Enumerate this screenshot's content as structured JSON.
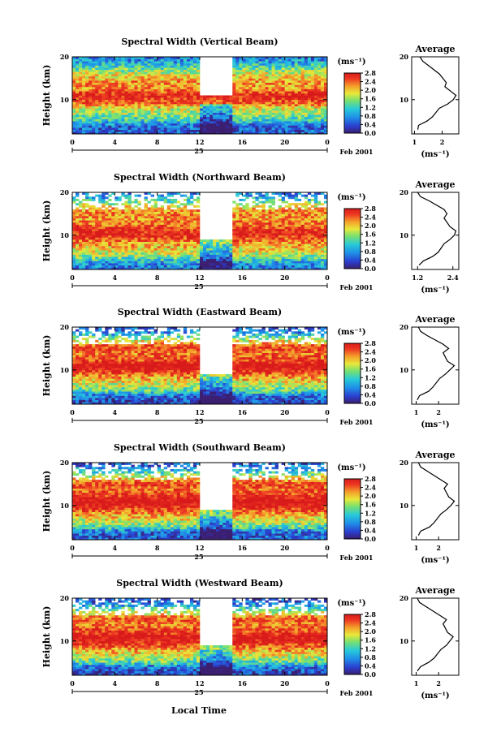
{
  "figure": {
    "xlabel": "Local Time",
    "date_label": "Feb 2001",
    "day_label": "25",
    "colorbar_unit": "(ms⁻¹)",
    "avg_title": "Average",
    "avg_unit": "(ms⁻¹)"
  },
  "chart_data": [
    {
      "type": "heatmap",
      "title": "Spectral Width (Vertical Beam)",
      "xlabel": "Local Time",
      "ylabel": "Height (km)",
      "x_ticks": [
        "0",
        "4",
        "8",
        "12",
        "16",
        "20",
        "0"
      ],
      "xlim": [
        0,
        24
      ],
      "y_ticks": [
        "20",
        "10"
      ],
      "ylim": [
        2,
        20
      ],
      "colorbar": {
        "unit": "(ms⁻¹)",
        "ticks": [
          "2.8",
          "2.4",
          "2.0",
          "1.6",
          "1.2",
          "0.8",
          "0.4",
          "0.0"
        ],
        "range": [
          0,
          2.8
        ],
        "colors": [
          "#3b1e70",
          "#2a3fd0",
          "#1f8fe8",
          "#27c9d9",
          "#78e070",
          "#e8e83a",
          "#f4a02a",
          "#ee3b22",
          "#d81a1a"
        ]
      },
      "average_profile": {
        "title": "Average",
        "xlabel": "(ms⁻¹)",
        "x_ticks": [
          "1",
          "2"
        ],
        "xlim": [
          0.9,
          2.6
        ],
        "y_ticks": [
          "20",
          "10"
        ],
        "height_km": [
          3,
          4,
          5,
          6,
          8,
          9,
          10,
          11,
          12,
          13,
          14,
          16,
          18,
          19,
          20
        ],
        "width_ms": [
          1.12,
          1.15,
          1.45,
          1.65,
          1.9,
          2.2,
          2.4,
          2.5,
          2.3,
          2.1,
          2.15,
          1.9,
          1.5,
          1.3,
          1.2
        ]
      },
      "date": "Feb 2001",
      "day": "25"
    },
    {
      "type": "heatmap",
      "title": "Spectral Width (Northward Beam)",
      "xlabel": "Local Time",
      "ylabel": "Height (km)",
      "x_ticks": [
        "0",
        "4",
        "8",
        "12",
        "16",
        "20",
        "0"
      ],
      "xlim": [
        0,
        24
      ],
      "y_ticks": [
        "20",
        "10"
      ],
      "ylim": [
        2,
        20
      ],
      "colorbar": {
        "unit": "(ms⁻¹)",
        "ticks": [
          "2.8",
          "2.4",
          "2.0",
          "1.6",
          "1.2",
          "0.8",
          "0.4",
          "0.0"
        ],
        "range": [
          0,
          2.8
        ],
        "colors": [
          "#3b1e70",
          "#2a3fd0",
          "#1f8fe8",
          "#27c9d9",
          "#78e070",
          "#e8e83a",
          "#f4a02a",
          "#ee3b22",
          "#d81a1a"
        ]
      },
      "average_profile": {
        "title": "Average",
        "xlabel": "(ms⁻¹)",
        "x_ticks": [
          "1.2",
          "2.4"
        ],
        "xlim": [
          1.0,
          2.6
        ],
        "y_ticks": [
          "20",
          "10"
        ],
        "height_km": [
          3,
          4,
          5,
          6,
          8,
          9,
          10,
          11,
          12,
          14,
          15,
          16,
          18,
          19,
          20
        ],
        "width_ms": [
          1.25,
          1.4,
          1.7,
          1.9,
          2.1,
          2.3,
          2.45,
          2.5,
          2.3,
          2.1,
          2.2,
          2.1,
          1.6,
          1.3,
          1.2
        ]
      },
      "date": "Feb 2001",
      "day": "25"
    },
    {
      "type": "heatmap",
      "title": "Spectral Width (Eastward Beam)",
      "xlabel": "Local Time",
      "ylabel": "Height (km)",
      "x_ticks": [
        "0",
        "4",
        "8",
        "12",
        "16",
        "20",
        "0"
      ],
      "xlim": [
        0,
        24
      ],
      "y_ticks": [
        "20",
        "10"
      ],
      "ylim": [
        2,
        20
      ],
      "colorbar": {
        "unit": "(ms⁻¹)",
        "ticks": [
          "2.8",
          "2.4",
          "2.0",
          "1.6",
          "1.2",
          "0.8",
          "0.4",
          "0.0"
        ],
        "range": [
          0,
          2.8
        ],
        "colors": [
          "#3b1e70",
          "#2a3fd0",
          "#1f8fe8",
          "#27c9d9",
          "#78e070",
          "#e8e83a",
          "#f4a02a",
          "#ee3b22",
          "#d81a1a"
        ]
      },
      "average_profile": {
        "title": "Average",
        "xlabel": "(ms⁻¹)",
        "x_ticks": [
          "1",
          "2"
        ],
        "xlim": [
          0.8,
          2.9
        ],
        "y_ticks": [
          "20",
          "10"
        ],
        "height_km": [
          3,
          4,
          5,
          6,
          8,
          9,
          10,
          11,
          12,
          14,
          15,
          16,
          18,
          19,
          20
        ],
        "width_ms": [
          1.05,
          1.15,
          1.55,
          1.75,
          2.05,
          2.3,
          2.5,
          2.7,
          2.4,
          2.2,
          2.45,
          2.2,
          1.5,
          1.2,
          1.1
        ]
      },
      "date": "Feb 2001",
      "day": "25"
    },
    {
      "type": "heatmap",
      "title": "Spectral Width (Southward Beam)",
      "xlabel": "Local Time",
      "ylabel": "Height (km)",
      "x_ticks": [
        "0",
        "4",
        "8",
        "12",
        "16",
        "20",
        "0"
      ],
      "xlim": [
        0,
        24
      ],
      "y_ticks": [
        "20",
        "10"
      ],
      "ylim": [
        2,
        20
      ],
      "colorbar": {
        "unit": "(ms⁻¹)",
        "ticks": [
          "2.8",
          "2.4",
          "2.0",
          "1.6",
          "1.2",
          "0.8",
          "0.4",
          "0.0"
        ],
        "range": [
          0,
          2.8
        ],
        "colors": [
          "#3b1e70",
          "#2a3fd0",
          "#1f8fe8",
          "#27c9d9",
          "#78e070",
          "#e8e83a",
          "#f4a02a",
          "#ee3b22",
          "#d81a1a"
        ]
      },
      "average_profile": {
        "title": "Average",
        "xlabel": "(ms⁻¹)",
        "x_ticks": [
          "1",
          "2"
        ],
        "xlim": [
          0.8,
          2.9
        ],
        "y_ticks": [
          "20",
          "10"
        ],
        "height_km": [
          3,
          4,
          5,
          6,
          8,
          9,
          10,
          11,
          12,
          14,
          15,
          16,
          18,
          19,
          20
        ],
        "width_ms": [
          1.1,
          1.2,
          1.6,
          1.8,
          2.1,
          2.35,
          2.55,
          2.7,
          2.45,
          2.25,
          2.4,
          2.1,
          1.5,
          1.2,
          1.1
        ]
      },
      "date": "Feb 2001",
      "day": "25"
    },
    {
      "type": "heatmap",
      "title": "Spectral Width (Westward Beam)",
      "xlabel": "Local Time",
      "ylabel": "Height (km)",
      "x_ticks": [
        "0",
        "4",
        "8",
        "12",
        "16",
        "20",
        "0"
      ],
      "xlim": [
        0,
        24
      ],
      "y_ticks": [
        "20",
        "10"
      ],
      "ylim": [
        2,
        20
      ],
      "colorbar": {
        "unit": "(ms⁻¹)",
        "ticks": [
          "2.8",
          "2.4",
          "2.0",
          "1.6",
          "1.2",
          "0.8",
          "0.4",
          "0.0"
        ],
        "range": [
          0,
          2.8
        ],
        "colors": [
          "#3b1e70",
          "#2a3fd0",
          "#1f8fe8",
          "#27c9d9",
          "#78e070",
          "#e8e83a",
          "#f4a02a",
          "#ee3b22",
          "#d81a1a"
        ]
      },
      "average_profile": {
        "title": "Average",
        "xlabel": "(ms⁻¹)",
        "x_ticks": [
          "1",
          "2"
        ],
        "xlim": [
          0.8,
          2.9
        ],
        "y_ticks": [
          "20",
          "10"
        ],
        "height_km": [
          3,
          4,
          5,
          6,
          8,
          9,
          10,
          11,
          12,
          14,
          15,
          16,
          18,
          19,
          20
        ],
        "width_ms": [
          1.05,
          1.2,
          1.55,
          1.8,
          2.1,
          2.35,
          2.5,
          2.65,
          2.4,
          2.2,
          2.35,
          2.05,
          1.45,
          1.15,
          1.05
        ]
      },
      "date": "Feb 2001",
      "day": "25"
    }
  ]
}
